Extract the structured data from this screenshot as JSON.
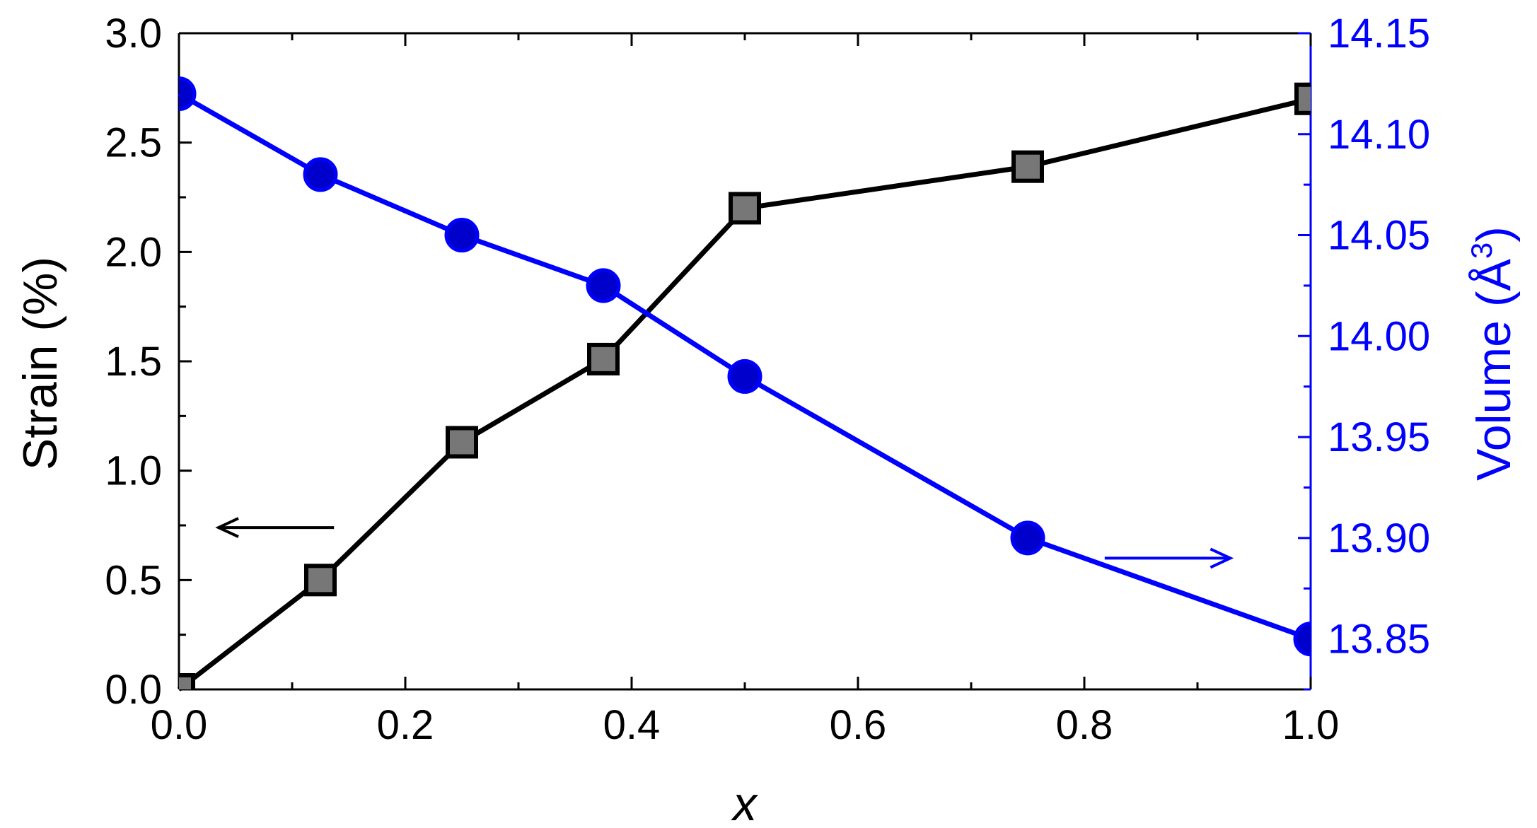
{
  "chart_data": {
    "type": "line",
    "title": "",
    "xlabel": "x",
    "ylabel": "Strain (%)",
    "y2label": "Volume (Å³)",
    "xlim": [
      0,
      1
    ],
    "ylim": [
      0,
      3
    ],
    "y2lim": [
      13.825,
      14.15
    ],
    "grid": false,
    "x_ticks": [
      "0.0",
      "0.2",
      "0.4",
      "0.6",
      "0.8",
      "1.0"
    ],
    "y_ticks": [
      "0.0",
      "0.5",
      "1.0",
      "1.5",
      "2.0",
      "2.5",
      "3.0"
    ],
    "y2_ticks": [
      "13.85",
      "13.90",
      "13.95",
      "14.00",
      "14.05",
      "14.10",
      "14.15"
    ],
    "series": [
      {
        "axis": "left",
        "marker": "square",
        "color": "#000000",
        "marker_fill": "#777777",
        "x": [
          0.0,
          0.125,
          0.25,
          0.375,
          0.5,
          0.75,
          1.0
        ],
        "values": [
          0.0,
          0.5,
          1.13,
          1.51,
          2.2,
          2.39,
          2.7
        ]
      },
      {
        "axis": "right",
        "marker": "circle",
        "color": "#0000ff",
        "marker_fill": "#0000cc",
        "x": [
          0.0,
          0.125,
          0.25,
          0.375,
          0.5,
          0.75,
          1.0
        ],
        "values": [
          14.12,
          14.08,
          14.05,
          14.025,
          13.98,
          13.9,
          13.85
        ]
      }
    ],
    "annotations": [
      {
        "type": "arrow",
        "direction": "left",
        "axis": "left",
        "color": "#000000"
      },
      {
        "type": "arrow",
        "direction": "right",
        "axis": "right",
        "color": "#0000ff"
      }
    ],
    "colors": {
      "left_axis": "#000000",
      "right_axis": "#0000ff"
    }
  }
}
